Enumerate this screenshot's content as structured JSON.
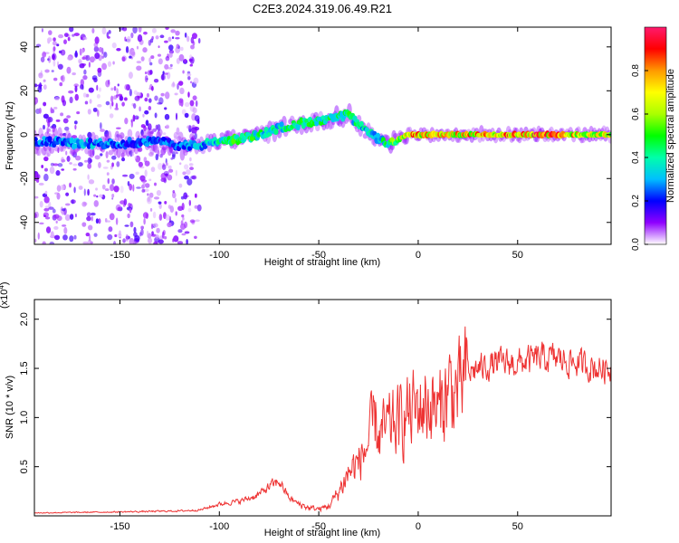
{
  "title": "C2E3.2024.319.06.49.R21",
  "chart_data": [
    {
      "type": "heatmap",
      "xlabel": "Height of straight line (km)",
      "ylabel": "Frequency (Hz)",
      "xlim": [
        -193,
        97
      ],
      "ylim": [
        -50,
        49
      ],
      "xticks": [
        -150,
        -100,
        -50,
        0,
        50
      ],
      "yticks": [
        -40,
        -20,
        0,
        20,
        40
      ],
      "grid": false,
      "colorbar": {
        "label": "Normalized spectral amplitude",
        "range": [
          0,
          1
        ],
        "ticks": [
          "0.0",
          "0.2",
          "0.4",
          "0.6",
          "0.8"
        ],
        "colormap": [
          "#ffffff",
          "#8f00ff",
          "#0000ff",
          "#00bfff",
          "#00ffaa",
          "#00ff00",
          "#aaff00",
          "#ffff00",
          "#ff9900",
          "#ff0000",
          "#ff1a6e"
        ]
      },
      "ridge": {
        "x": [
          -190,
          -170,
          -150,
          -130,
          -120,
          -110,
          -100,
          -90,
          -80,
          -70,
          -60,
          -50,
          -40,
          -35,
          -30,
          -25,
          -20,
          -15,
          -10,
          -5,
          0,
          10,
          20,
          40,
          60,
          80,
          95
        ],
        "frequency": [
          -3,
          -4,
          -4,
          -3,
          -5,
          -5,
          -3,
          -2,
          0,
          3,
          5,
          6,
          8,
          9,
          5,
          1,
          -2,
          -4,
          -2,
          0,
          0,
          0,
          0,
          0,
          0,
          0,
          0
        ],
        "amplitude": [
          0.3,
          0.35,
          0.3,
          0.3,
          0.3,
          0.35,
          0.45,
          0.55,
          0.5,
          0.45,
          0.5,
          0.55,
          0.5,
          0.5,
          0.45,
          0.4,
          0.45,
          0.5,
          0.7,
          0.85,
          0.9,
          0.85,
          0.85,
          0.9,
          0.98,
          0.85,
          0.75
        ]
      }
    },
    {
      "type": "line",
      "xlabel": "Height of straight line (km)",
      "ylabel": "SNR (10 * v/v)",
      "y_multiplier": "(x10",
      "y_multiplier_exp": "4",
      "xlim": [
        -193,
        97
      ],
      "ylim": [
        0,
        2.2
      ],
      "xticks": [
        -150,
        -100,
        -50,
        0,
        50
      ],
      "yticks": [
        "0.5",
        "1.0",
        "1.5",
        "2.0"
      ],
      "grid": false,
      "color": "#ee3333",
      "series": [
        {
          "x": [
            -193,
            -150,
            -120,
            -110,
            -100,
            -90,
            -85,
            -80,
            -75,
            -70,
            -65,
            -60,
            -55,
            -50,
            -45,
            -40,
            -35,
            -30,
            -25,
            -22,
            -20,
            -15,
            -10,
            -5,
            0,
            5,
            10,
            15,
            20,
            25,
            30,
            40,
            50,
            60,
            70,
            80,
            90,
            97
          ],
          "values": [
            0.03,
            0.04,
            0.05,
            0.06,
            0.12,
            0.15,
            0.18,
            0.22,
            0.3,
            0.35,
            0.18,
            0.12,
            0.08,
            0.07,
            0.1,
            0.25,
            0.45,
            0.55,
            0.75,
            1.0,
            0.8,
            0.9,
            0.95,
            1.05,
            1.1,
            1.15,
            1.05,
            1.3,
            1.25,
            1.45,
            1.5,
            1.55,
            1.55,
            1.6,
            1.6,
            1.55,
            1.5,
            1.5
          ]
        }
      ]
    }
  ]
}
